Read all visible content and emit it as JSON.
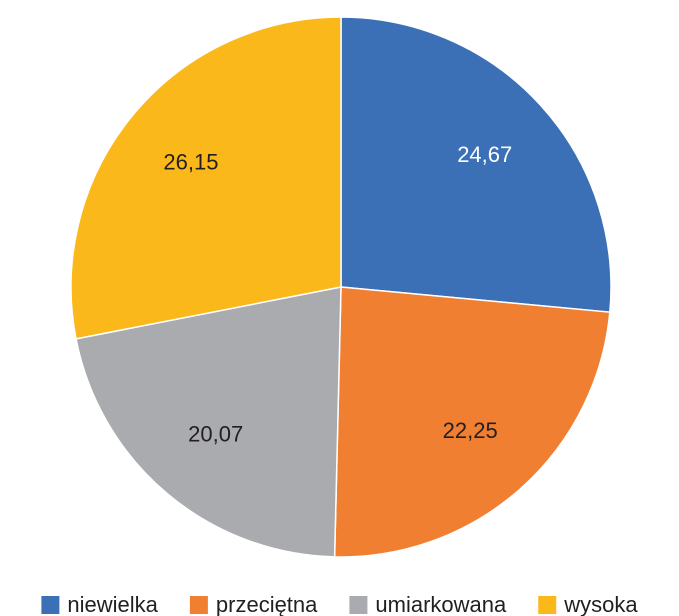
{
  "chart_data": {
    "type": "pie",
    "categories": [
      "niewielka",
      "przeciętna",
      "umiarkowana",
      "wysoka"
    ],
    "values": [
      24.67,
      22.25,
      20.07,
      26.15
    ],
    "value_labels": [
      "24,67",
      "22,25",
      "20,07",
      "26,15"
    ],
    "colors": [
      "#3b6fb6",
      "#f07f32",
      "#a9abae",
      "#fbb81a"
    ],
    "label_colors": [
      "#ffffff",
      "#231f20",
      "#231f20",
      "#231f20"
    ],
    "legend": "bottom"
  }
}
